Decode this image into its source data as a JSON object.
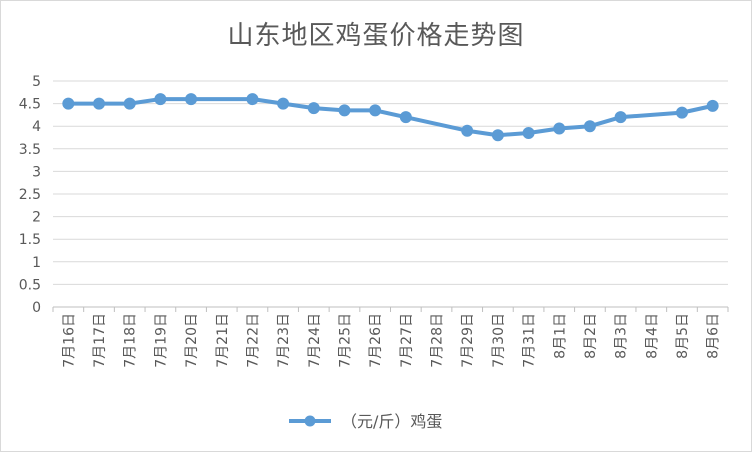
{
  "chart_data": {
    "type": "line",
    "title": "山东地区鸡蛋价格走势图",
    "categories": [
      "7月16日",
      "7月17日",
      "7月18日",
      "7月19日",
      "7月20日",
      "7月21日",
      "7月22日",
      "7月23日",
      "7月24日",
      "7月25日",
      "7月26日",
      "7月27日",
      "7月28日",
      "7月29日",
      "7月30日",
      "7月31日",
      "8月1日",
      "8月2日",
      "8月3日",
      "8月4日",
      "8月5日",
      "8月6日"
    ],
    "series": [
      {
        "name": "（元/斤）鸡蛋",
        "color": "#5b9bd5",
        "values": [
          4.5,
          4.5,
          4.5,
          4.6,
          4.6,
          null,
          4.6,
          4.5,
          4.4,
          4.35,
          4.35,
          4.2,
          null,
          3.9,
          3.8,
          3.85,
          3.95,
          4.0,
          4.2,
          null,
          4.3,
          4.45
        ]
      }
    ],
    "ylim": [
      0,
      5
    ],
    "yticks": [
      "0",
      "0.5",
      "1",
      "1.5",
      "2",
      "2.5",
      "3",
      "3.5",
      "4",
      "4.5",
      "5"
    ],
    "grid": true,
    "legend_position": "bottom"
  }
}
